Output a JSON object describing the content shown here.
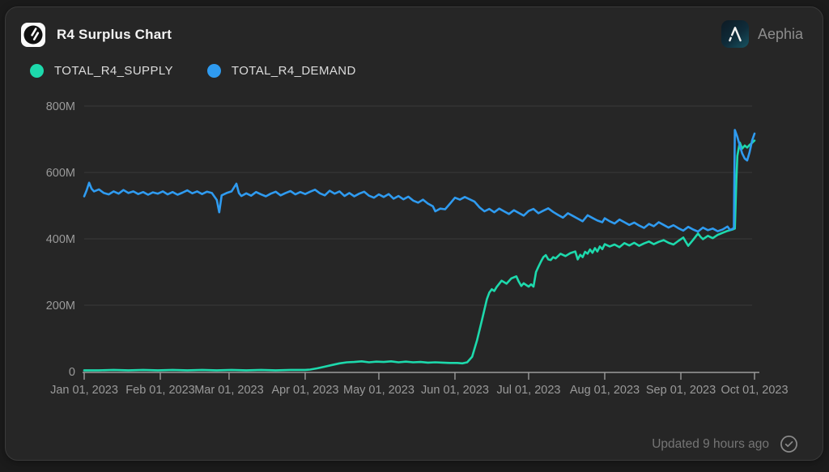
{
  "header": {
    "title": "R4 Surplus Chart",
    "brand": "Aephia"
  },
  "legend": {
    "items": [
      {
        "label": "TOTAL_R4_SUPPLY",
        "color": "#1dd9ac"
      },
      {
        "label": "TOTAL_R4_DEMAND",
        "color": "#2f9bf0"
      }
    ]
  },
  "footer": {
    "updated": "Updated 9 hours ago",
    "check_icon": "check-circle"
  },
  "colors": {
    "card_bg": "#262626",
    "page_bg": "#1b1b1b",
    "border": "#3a3a3a",
    "grid": "#3a3a3a",
    "axis": "#9b9b9b",
    "tick_label": "#9a9a9a",
    "supply": "#1dd9ac",
    "demand": "#2f9bf0"
  },
  "chart_data": {
    "type": "line",
    "title": "R4 Surplus Chart",
    "value_unit": "millions",
    "x_unit": "days since Jan 01, 2023",
    "xlim": [
      0,
      273
    ],
    "ylim": [
      0,
      800
    ],
    "grid": "horizontal",
    "legend_position": "top-left",
    "x_ticks": [
      {
        "day": 0,
        "label": "Jan 01, 2023"
      },
      {
        "day": 31,
        "label": "Feb 01, 2023"
      },
      {
        "day": 59,
        "label": "Mar 01, 2023"
      },
      {
        "day": 90,
        "label": "Apr 01, 2023"
      },
      {
        "day": 120,
        "label": "May 01, 2023"
      },
      {
        "day": 151,
        "label": "Jun 01, 2023"
      },
      {
        "day": 181,
        "label": "Jul 01, 2023"
      },
      {
        "day": 212,
        "label": "Aug 01, 2023"
      },
      {
        "day": 243,
        "label": "Sep 01, 2023"
      },
      {
        "day": 273,
        "label": "Oct 01, 2023"
      }
    ],
    "y_ticks": [
      {
        "value": 0,
        "label": "0"
      },
      {
        "value": 200,
        "label": "200M"
      },
      {
        "value": 400,
        "label": "400M"
      },
      {
        "value": 600,
        "label": "600M"
      },
      {
        "value": 800,
        "label": "800M"
      }
    ],
    "series": [
      {
        "name": "TOTAL_R4_SUPPLY",
        "color": "#1dd9ac",
        "points": [
          [
            0,
            4
          ],
          [
            6,
            4
          ],
          [
            12,
            5
          ],
          [
            18,
            4
          ],
          [
            24,
            5
          ],
          [
            30,
            4
          ],
          [
            36,
            5
          ],
          [
            42,
            4
          ],
          [
            48,
            5
          ],
          [
            54,
            4
          ],
          [
            60,
            5
          ],
          [
            66,
            4
          ],
          [
            72,
            5
          ],
          [
            78,
            4
          ],
          [
            84,
            5
          ],
          [
            90,
            5
          ],
          [
            92,
            6
          ],
          [
            95,
            10
          ],
          [
            98,
            15
          ],
          [
            101,
            20
          ],
          [
            104,
            25
          ],
          [
            107,
            28
          ],
          [
            110,
            29
          ],
          [
            113,
            31
          ],
          [
            116,
            28
          ],
          [
            119,
            30
          ],
          [
            122,
            29
          ],
          [
            125,
            31
          ],
          [
            128,
            28
          ],
          [
            131,
            30
          ],
          [
            134,
            28
          ],
          [
            137,
            29
          ],
          [
            140,
            27
          ],
          [
            143,
            28
          ],
          [
            146,
            27
          ],
          [
            149,
            26
          ],
          [
            152,
            26
          ],
          [
            154,
            25
          ],
          [
            156,
            28
          ],
          [
            158,
            45
          ],
          [
            160,
            95
          ],
          [
            162,
            155
          ],
          [
            164,
            218
          ],
          [
            165,
            238
          ],
          [
            166,
            248
          ],
          [
            167,
            243
          ],
          [
            168,
            255
          ],
          [
            170,
            274
          ],
          [
            172,
            265
          ],
          [
            174,
            281
          ],
          [
            176,
            287
          ],
          [
            177,
            271
          ],
          [
            178,
            258
          ],
          [
            179,
            266
          ],
          [
            180,
            261
          ],
          [
            181,
            256
          ],
          [
            182,
            263
          ],
          [
            183,
            256
          ],
          [
            184,
            300
          ],
          [
            185,
            316
          ],
          [
            186,
            331
          ],
          [
            187,
            345
          ],
          [
            188,
            351
          ],
          [
            189,
            338
          ],
          [
            190,
            336
          ],
          [
            191,
            345
          ],
          [
            192,
            341
          ],
          [
            194,
            355
          ],
          [
            196,
            348
          ],
          [
            198,
            357
          ],
          [
            200,
            362
          ],
          [
            201,
            338
          ],
          [
            202,
            352
          ],
          [
            203,
            345
          ],
          [
            204,
            361
          ],
          [
            205,
            355
          ],
          [
            206,
            368
          ],
          [
            207,
            358
          ],
          [
            208,
            372
          ],
          [
            209,
            362
          ],
          [
            210,
            377
          ],
          [
            211,
            369
          ],
          [
            212,
            384
          ],
          [
            214,
            377
          ],
          [
            216,
            383
          ],
          [
            218,
            375
          ],
          [
            220,
            387
          ],
          [
            222,
            380
          ],
          [
            224,
            388
          ],
          [
            226,
            379
          ],
          [
            228,
            386
          ],
          [
            230,
            392
          ],
          [
            232,
            384
          ],
          [
            234,
            391
          ],
          [
            236,
            396
          ],
          [
            238,
            388
          ],
          [
            240,
            383
          ],
          [
            242,
            394
          ],
          [
            244,
            404
          ],
          [
            245,
            391
          ],
          [
            246,
            379
          ],
          [
            248,
            397
          ],
          [
            250,
            416
          ],
          [
            251,
            406
          ],
          [
            252,
            399
          ],
          [
            254,
            409
          ],
          [
            256,
            402
          ],
          [
            258,
            412
          ],
          [
            260,
            418
          ],
          [
            262,
            424
          ],
          [
            264,
            428
          ],
          [
            265,
            431
          ],
          [
            265.6,
            580
          ],
          [
            266,
            650
          ],
          [
            267,
            690
          ],
          [
            268,
            672
          ],
          [
            269,
            681
          ],
          [
            270,
            675
          ],
          [
            271,
            683
          ],
          [
            272,
            689
          ],
          [
            273,
            696
          ]
        ]
      },
      {
        "name": "TOTAL_R4_DEMAND",
        "color": "#2f9bf0",
        "points": [
          [
            0,
            528
          ],
          [
            1,
            546
          ],
          [
            2,
            569
          ],
          [
            3,
            551
          ],
          [
            4,
            543
          ],
          [
            6,
            549
          ],
          [
            8,
            538
          ],
          [
            10,
            534
          ],
          [
            12,
            543
          ],
          [
            14,
            536
          ],
          [
            16,
            547
          ],
          [
            18,
            538
          ],
          [
            20,
            543
          ],
          [
            22,
            535
          ],
          [
            24,
            541
          ],
          [
            26,
            533
          ],
          [
            28,
            540
          ],
          [
            30,
            536
          ],
          [
            32,
            543
          ],
          [
            34,
            534
          ],
          [
            36,
            541
          ],
          [
            38,
            533
          ],
          [
            40,
            539
          ],
          [
            42,
            546
          ],
          [
            44,
            537
          ],
          [
            46,
            543
          ],
          [
            48,
            535
          ],
          [
            50,
            542
          ],
          [
            52,
            538
          ],
          [
            54,
            517
          ],
          [
            55,
            480
          ],
          [
            56,
            531
          ],
          [
            58,
            538
          ],
          [
            60,
            543
          ],
          [
            62,
            566
          ],
          [
            63,
            538
          ],
          [
            64,
            529
          ],
          [
            66,
            537
          ],
          [
            68,
            530
          ],
          [
            70,
            541
          ],
          [
            72,
            534
          ],
          [
            74,
            528
          ],
          [
            76,
            536
          ],
          [
            78,
            542
          ],
          [
            80,
            531
          ],
          [
            82,
            538
          ],
          [
            84,
            544
          ],
          [
            86,
            534
          ],
          [
            88,
            541
          ],
          [
            90,
            535
          ],
          [
            92,
            542
          ],
          [
            94,
            548
          ],
          [
            96,
            537
          ],
          [
            98,
            531
          ],
          [
            100,
            545
          ],
          [
            102,
            536
          ],
          [
            104,
            543
          ],
          [
            106,
            529
          ],
          [
            108,
            538
          ],
          [
            110,
            528
          ],
          [
            112,
            536
          ],
          [
            114,
            542
          ],
          [
            116,
            530
          ],
          [
            118,
            524
          ],
          [
            120,
            534
          ],
          [
            122,
            526
          ],
          [
            124,
            535
          ],
          [
            126,
            521
          ],
          [
            128,
            529
          ],
          [
            130,
            519
          ],
          [
            132,
            527
          ],
          [
            134,
            515
          ],
          [
            136,
            509
          ],
          [
            138,
            518
          ],
          [
            140,
            506
          ],
          [
            142,
            498
          ],
          [
            143,
            483
          ],
          [
            145,
            491
          ],
          [
            147,
            489
          ],
          [
            149,
            506
          ],
          [
            151,
            524
          ],
          [
            153,
            518
          ],
          [
            155,
            526
          ],
          [
            157,
            519
          ],
          [
            159,
            512
          ],
          [
            161,
            495
          ],
          [
            163,
            483
          ],
          [
            165,
            490
          ],
          [
            167,
            480
          ],
          [
            169,
            491
          ],
          [
            171,
            483
          ],
          [
            173,
            475
          ],
          [
            175,
            486
          ],
          [
            177,
            478
          ],
          [
            179,
            470
          ],
          [
            181,
            484
          ],
          [
            183,
            490
          ],
          [
            185,
            477
          ],
          [
            187,
            485
          ],
          [
            189,
            492
          ],
          [
            191,
            481
          ],
          [
            193,
            472
          ],
          [
            195,
            464
          ],
          [
            197,
            477
          ],
          [
            199,
            469
          ],
          [
            201,
            461
          ],
          [
            203,
            453
          ],
          [
            205,
            471
          ],
          [
            207,
            463
          ],
          [
            209,
            455
          ],
          [
            211,
            450
          ],
          [
            212,
            462
          ],
          [
            214,
            453
          ],
          [
            216,
            446
          ],
          [
            218,
            458
          ],
          [
            220,
            450
          ],
          [
            222,
            442
          ],
          [
            224,
            449
          ],
          [
            226,
            440
          ],
          [
            228,
            433
          ],
          [
            230,
            445
          ],
          [
            232,
            438
          ],
          [
            234,
            450
          ],
          [
            236,
            442
          ],
          [
            238,
            434
          ],
          [
            240,
            441
          ],
          [
            242,
            432
          ],
          [
            244,
            425
          ],
          [
            246,
            436
          ],
          [
            248,
            428
          ],
          [
            250,
            422
          ],
          [
            252,
            434
          ],
          [
            254,
            426
          ],
          [
            256,
            431
          ],
          [
            258,
            423
          ],
          [
            260,
            428
          ],
          [
            262,
            437
          ],
          [
            263,
            427
          ],
          [
            264,
            430
          ],
          [
            264.6,
            433
          ],
          [
            265,
            728
          ],
          [
            266,
            707
          ],
          [
            267,
            681
          ],
          [
            268,
            657
          ],
          [
            269,
            642
          ],
          [
            270,
            636
          ],
          [
            271,
            661
          ],
          [
            272,
            696
          ],
          [
            273,
            717
          ]
        ]
      }
    ]
  }
}
